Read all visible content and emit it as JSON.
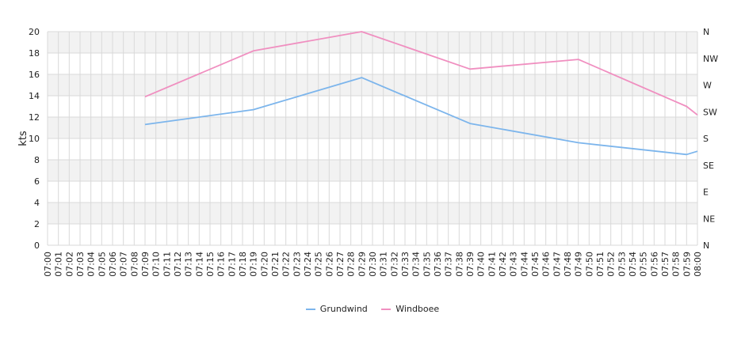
{
  "chart_data": {
    "type": "line",
    "ylabel": "kts",
    "ylim": [
      0,
      20
    ],
    "yticks": [
      0,
      2,
      4,
      6,
      8,
      10,
      12,
      14,
      16,
      18,
      20
    ],
    "right_axis_labels": [
      "N",
      "NE",
      "E",
      "SE",
      "S",
      "SW",
      "W",
      "NW",
      "N"
    ],
    "categories": [
      "07:00",
      "07:01",
      "07:02",
      "07:03",
      "07:04",
      "07:05",
      "07:06",
      "07:07",
      "07:08",
      "07:09",
      "07:10",
      "07:11",
      "07:12",
      "07:13",
      "07:14",
      "07:15",
      "07:16",
      "07:17",
      "07:18",
      "07:19",
      "07:20",
      "07:21",
      "07:22",
      "07:23",
      "07:24",
      "07:25",
      "07:26",
      "07:27",
      "07:28",
      "07:29",
      "07:30",
      "07:31",
      "07:32",
      "07:33",
      "07:34",
      "07:35",
      "07:36",
      "07:37",
      "07:38",
      "07:39",
      "07:40",
      "07:41",
      "07:42",
      "07:43",
      "07:44",
      "07:45",
      "07:46",
      "07:47",
      "07:48",
      "07:49",
      "07:50",
      "07:51",
      "07:52",
      "07:53",
      "07:54",
      "07:55",
      "07:56",
      "07:57",
      "07:58",
      "07:59",
      "08:00"
    ],
    "series": [
      {
        "name": "Grundwind",
        "color": "#7cb5ec",
        "points": [
          [
            "07:09",
            11.3
          ],
          [
            "07:19",
            12.7
          ],
          [
            "07:29",
            15.7
          ],
          [
            "07:39",
            11.4
          ],
          [
            "07:49",
            9.6
          ],
          [
            "07:59",
            8.5
          ],
          [
            "08:00",
            8.8
          ]
        ]
      },
      {
        "name": "Windboee",
        "color": "#f08fc0",
        "points": [
          [
            "07:09",
            13.9
          ],
          [
            "07:19",
            18.2
          ],
          [
            "07:29",
            20.0
          ],
          [
            "07:39",
            16.5
          ],
          [
            "07:49",
            17.4
          ],
          [
            "07:59",
            13.0
          ],
          [
            "08:00",
            12.2
          ]
        ]
      }
    ],
    "grid": true,
    "legend": "bottom-center"
  }
}
